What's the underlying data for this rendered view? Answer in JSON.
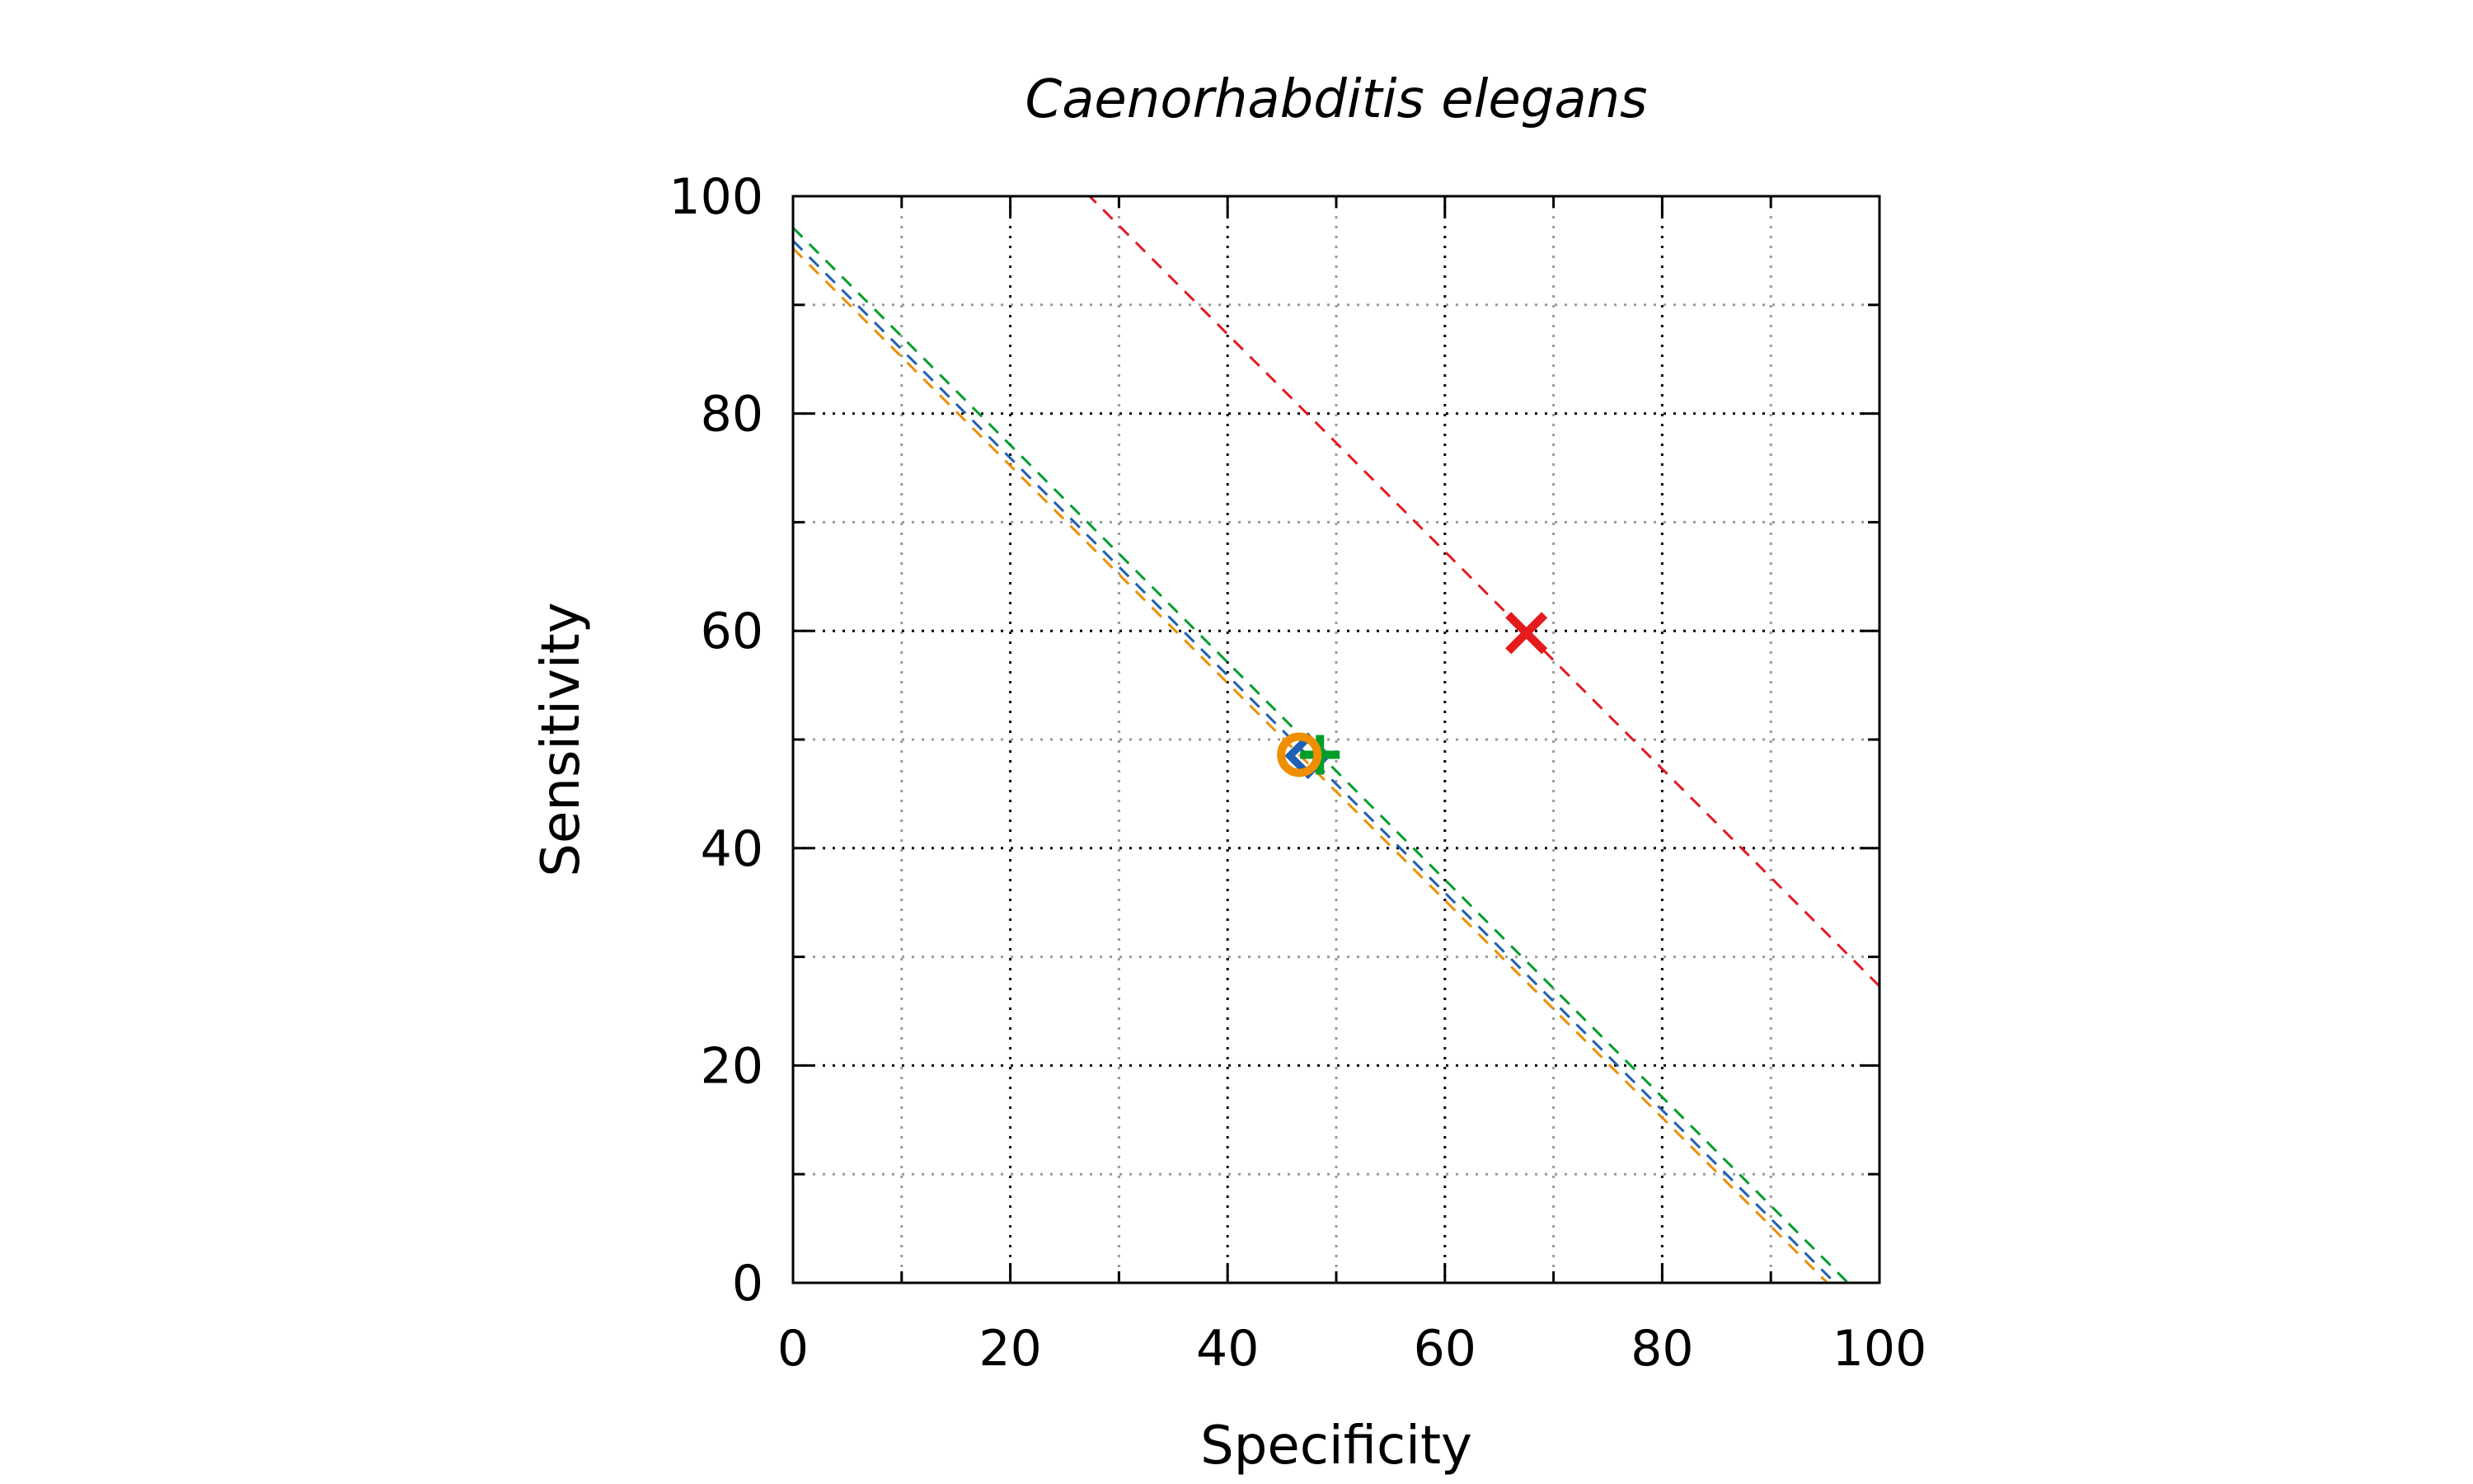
{
  "chart_data": {
    "type": "scatter",
    "title": "Caenorhabditis elegans",
    "xlabel": "Specificity",
    "ylabel": "Sensitivity",
    "xlim": [
      0,
      100
    ],
    "ylim": [
      0,
      100
    ],
    "xticks": [
      0,
      20,
      40,
      60,
      80,
      100
    ],
    "yticks": [
      0,
      20,
      40,
      60,
      80,
      100
    ],
    "grid": true,
    "series": [
      {
        "marker": "x",
        "color": "#e41a1c",
        "x": 67.5,
        "y": 59.8,
        "line_sum": 127.3
      },
      {
        "marker": "plus",
        "color": "#009e28",
        "x": 48.5,
        "y": 48.6,
        "line_sum": 97.1
      },
      {
        "marker": "diamond",
        "color": "#1f5fb4",
        "x": 47.4,
        "y": 48.5,
        "line_sum": 95.9
      },
      {
        "marker": "circle",
        "color": "#ee8e00",
        "x": 46.6,
        "y": 48.6,
        "line_sum": 95.2
      }
    ]
  }
}
